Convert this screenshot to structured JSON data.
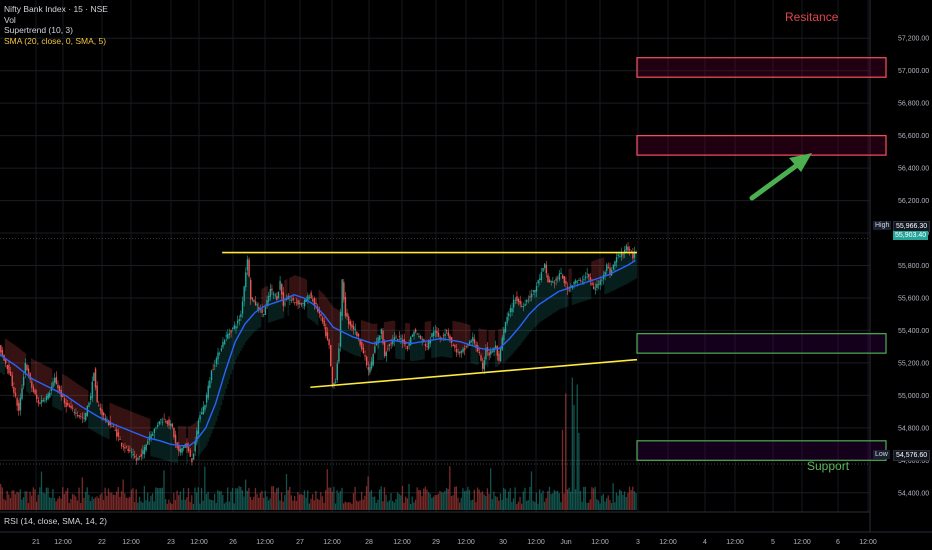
{
  "header": {
    "symbol_line": "Nifty Bank Index · 15 · NSE",
    "indicators": [
      "Vol",
      "Supertrend (10, 3)",
      "SMA (20, close, 0, SMA, 5)"
    ],
    "rsi_label": "RSI (14, close, SMA, 14, 2)"
  },
  "annotations": {
    "resistance": "Resitance",
    "support": "Support"
  },
  "price_badges": {
    "high_tag": "High",
    "high_value": "55,966.30",
    "last_value": "55,903.40",
    "low_tag": "Low",
    "low_value": "54,576.60"
  },
  "chart_data": {
    "type": "candlestick",
    "ylim": [
      54300,
      57300
    ],
    "y_ticks": [
      "57,200.00",
      "57,000.00",
      "56,800.00",
      "56,600.00",
      "56,400.00",
      "56,200.00",
      "56,000.00",
      "55,800.00",
      "55,600.00",
      "55,400.00",
      "55,200.00",
      "55,000.00",
      "54,800.00",
      "54,600.00",
      "54,400.00"
    ],
    "x_ticks": [
      "21",
      "12:00",
      "22",
      "12:00",
      "23",
      "12:00",
      "26",
      "12:00",
      "27",
      "12:00",
      "28",
      "12:00",
      "29",
      "12:00",
      "30",
      "12:00",
      "Jun",
      "12:00",
      "3",
      "12:00",
      "4",
      "12:00",
      "5",
      "12:00",
      "6",
      "12:00"
    ],
    "price_path": [
      [
        0,
        55300
      ],
      [
        6,
        55150
      ],
      [
        12,
        54900
      ],
      [
        16,
        55200
      ],
      [
        20,
        55050
      ],
      [
        24,
        54950
      ],
      [
        30,
        55000
      ],
      [
        34,
        55100
      ],
      [
        40,
        54950
      ],
      [
        46,
        54900
      ],
      [
        52,
        54850
      ],
      [
        56,
        55000
      ],
      [
        58,
        55150
      ],
      [
        60,
        54950
      ],
      [
        65,
        54850
      ],
      [
        70,
        54800
      ],
      [
        75,
        54700
      ],
      [
        80,
        54650
      ],
      [
        84,
        54600
      ],
      [
        88,
        54650
      ],
      [
        92,
        54750
      ],
      [
        96,
        54800
      ],
      [
        98,
        54850
      ],
      [
        102,
        54850
      ],
      [
        106,
        54800
      ],
      [
        108,
        54700
      ],
      [
        110,
        54650
      ],
      [
        114,
        54700
      ],
      [
        118,
        54600
      ],
      [
        120,
        54700
      ],
      [
        122,
        54850
      ],
      [
        126,
        54950
      ],
      [
        128,
        55050
      ],
      [
        130,
        55150
      ],
      [
        134,
        55250
      ],
      [
        138,
        55350
      ],
      [
        142,
        55400
      ],
      [
        146,
        55450
      ],
      [
        148,
        55500
      ],
      [
        152,
        55850
      ],
      [
        154,
        55600
      ],
      [
        158,
        55550
      ],
      [
        162,
        55500
      ],
      [
        166,
        55650
      ],
      [
        170,
        55600
      ],
      [
        172,
        55700
      ],
      [
        174,
        55550
      ],
      [
        176,
        55600
      ],
      [
        180,
        55580
      ],
      [
        186,
        55560
      ],
      [
        190,
        55620
      ],
      [
        194,
        55550
      ],
      [
        198,
        55450
      ],
      [
        202,
        55300
      ],
      [
        204,
        55050
      ],
      [
        206,
        55100
      ],
      [
        208,
        55300
      ],
      [
        210,
        55700
      ],
      [
        212,
        55500
      ],
      [
        214,
        55450
      ],
      [
        218,
        55400
      ],
      [
        222,
        55300
      ],
      [
        226,
        55150
      ],
      [
        228,
        55200
      ],
      [
        230,
        55300
      ],
      [
        234,
        55400
      ],
      [
        236,
        55250
      ],
      [
        238,
        55300
      ],
      [
        242,
        55350
      ],
      [
        246,
        55350
      ],
      [
        250,
        55300
      ],
      [
        254,
        55400
      ],
      [
        258,
        55350
      ],
      [
        262,
        55300
      ],
      [
        266,
        55400
      ],
      [
        270,
        55350
      ],
      [
        274,
        55400
      ],
      [
        278,
        55300
      ],
      [
        282,
        55250
      ],
      [
        286,
        55300
      ],
      [
        290,
        55350
      ],
      [
        294,
        55250
      ],
      [
        296,
        55150
      ],
      [
        298,
        55300
      ],
      [
        300,
        55250
      ],
      [
        304,
        55300
      ],
      [
        306,
        55200
      ],
      [
        308,
        55350
      ],
      [
        310,
        55450
      ],
      [
        312,
        55500
      ],
      [
        316,
        55600
      ],
      [
        320,
        55550
      ],
      [
        324,
        55600
      ],
      [
        328,
        55650
      ],
      [
        332,
        55750
      ],
      [
        334,
        55800
      ],
      [
        336,
        55700
      ],
      [
        340,
        55700
      ],
      [
        344,
        55750
      ],
      [
        348,
        55650
      ],
      [
        352,
        55700
      ],
      [
        356,
        55700
      ],
      [
        360,
        55750
      ],
      [
        364,
        55650
      ],
      [
        368,
        55700
      ],
      [
        372,
        55800
      ],
      [
        374,
        55750
      ],
      [
        378,
        55850
      ],
      [
        382,
        55880
      ],
      [
        384,
        55920
      ],
      [
        386,
        55880
      ],
      [
        388,
        55850
      ],
      [
        389,
        55900
      ]
    ],
    "sma_path": [
      [
        0,
        55250
      ],
      [
        10,
        55180
      ],
      [
        20,
        55100
      ],
      [
        30,
        55050
      ],
      [
        40,
        55000
      ],
      [
        50,
        54930
      ],
      [
        60,
        54870
      ],
      [
        70,
        54820
      ],
      [
        80,
        54780
      ],
      [
        90,
        54740
      ],
      [
        98,
        54720
      ],
      [
        104,
        54700
      ],
      [
        110,
        54690
      ],
      [
        116,
        54690
      ],
      [
        120,
        54720
      ],
      [
        126,
        54800
      ],
      [
        132,
        54950
      ],
      [
        138,
        55150
      ],
      [
        144,
        55330
      ],
      [
        150,
        55440
      ],
      [
        156,
        55510
      ],
      [
        162,
        55550
      ],
      [
        168,
        55570
      ],
      [
        174,
        55590
      ],
      [
        180,
        55620
      ],
      [
        186,
        55600
      ],
      [
        192,
        55560
      ],
      [
        198,
        55500
      ],
      [
        204,
        55420
      ],
      [
        210,
        55390
      ],
      [
        216,
        55360
      ],
      [
        222,
        55340
      ],
      [
        228,
        55320
      ],
      [
        234,
        55330
      ],
      [
        240,
        55340
      ],
      [
        246,
        55330
      ],
      [
        252,
        55320
      ],
      [
        258,
        55330
      ],
      [
        264,
        55340
      ],
      [
        270,
        55350
      ],
      [
        276,
        55340
      ],
      [
        282,
        55330
      ],
      [
        288,
        55310
      ],
      [
        294,
        55290
      ],
      [
        300,
        55280
      ],
      [
        306,
        55290
      ],
      [
        312,
        55350
      ],
      [
        318,
        55420
      ],
      [
        324,
        55500
      ],
      [
        330,
        55560
      ],
      [
        336,
        55600
      ],
      [
        342,
        55640
      ],
      [
        348,
        55660
      ],
      [
        354,
        55680
      ],
      [
        360,
        55700
      ],
      [
        366,
        55720
      ],
      [
        372,
        55740
      ],
      [
        378,
        55770
      ],
      [
        384,
        55800
      ],
      [
        389,
        55830
      ]
    ],
    "resistance_zones": [
      [
        56960,
        57080
      ],
      [
        56480,
        56600
      ]
    ],
    "support_zones": [
      [
        55260,
        55380
      ],
      [
        54600,
        54720
      ]
    ],
    "trendlines": [
      {
        "from": [
          136,
          55880
        ],
        "to": [
          390,
          55880
        ],
        "role": "resistance"
      },
      {
        "from": [
          190,
          55050
        ],
        "to": [
          390,
          55220
        ],
        "role": "rising support"
      }
    ],
    "series": [
      "Price",
      "Supertrend (10, 3)",
      "SMA (20, close, 0, SMA, 5)",
      "Vol"
    ],
    "grid": true,
    "colors": {
      "up": "#26a69a",
      "down": "#ef5350",
      "sma": "#2962ff",
      "trend": "#ffeb3b",
      "st_up": "#26a69a",
      "st_down": "#ef5350",
      "resistance_box": "#f7525f",
      "support_box": "#4caf50",
      "arrow": "#4caf50"
    }
  }
}
